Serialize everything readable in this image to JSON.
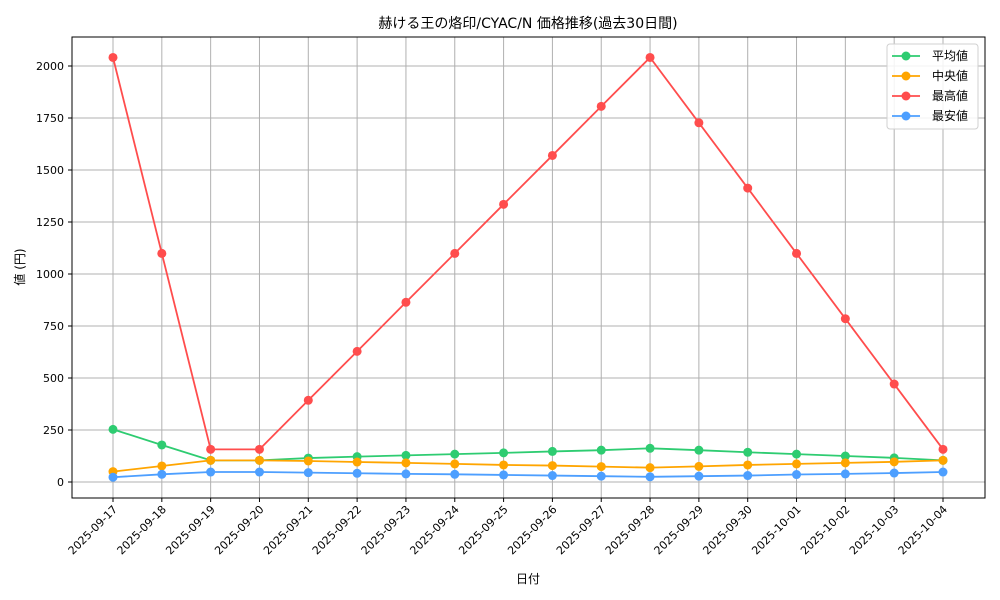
{
  "chart_data": {
    "type": "line",
    "title": "赫ける王の烙印/CYAC/N 価格推移(過去30日間)",
    "xlabel": "日付",
    "ylabel": "値 (円)",
    "ylim": [
      -70,
      2130
    ],
    "yticks": [
      0,
      250,
      500,
      750,
      1000,
      1250,
      1500,
      1750,
      2000
    ],
    "grid": true,
    "legend_position": "upper right",
    "categories": [
      "2025-09-17",
      "2025-09-18",
      "2025-09-19",
      "2025-09-20",
      "2025-09-21",
      "2025-09-22",
      "2025-09-23",
      "2025-09-24",
      "2025-09-25",
      "2025-09-26",
      "2025-09-27",
      "2025-09-28",
      "2025-09-29",
      "2025-09-30",
      "2025-10-01",
      "2025-10-02",
      "2025-10-03",
      "2025-10-04"
    ],
    "series": [
      {
        "name": "平均値",
        "color": "#2ecc71",
        "values": [
          253,
          178,
          104,
          104,
          115,
          122,
          128,
          134,
          140,
          147,
          153,
          162,
          153,
          143,
          134,
          125,
          116,
          104
        ]
      },
      {
        "name": "中央値",
        "color": "#ffa500",
        "values": [
          50,
          77,
          104,
          104,
          101,
          96,
          92,
          87,
          82,
          79,
          74,
          69,
          75,
          82,
          87,
          92,
          97,
          104
        ]
      },
      {
        "name": "最高値",
        "color": "#ff4d4d",
        "values": [
          2041,
          1099,
          157,
          157,
          393,
          628,
          864,
          1099,
          1335,
          1570,
          1806,
          2041,
          1727,
          1413,
          1099,
          785,
          471,
          157
        ]
      },
      {
        "name": "最安値",
        "color": "#4d9fff",
        "values": [
          23,
          37,
          48,
          48,
          45,
          42,
          39,
          37,
          34,
          31,
          28,
          25,
          28,
          31,
          36,
          39,
          43,
          48
        ]
      }
    ]
  }
}
